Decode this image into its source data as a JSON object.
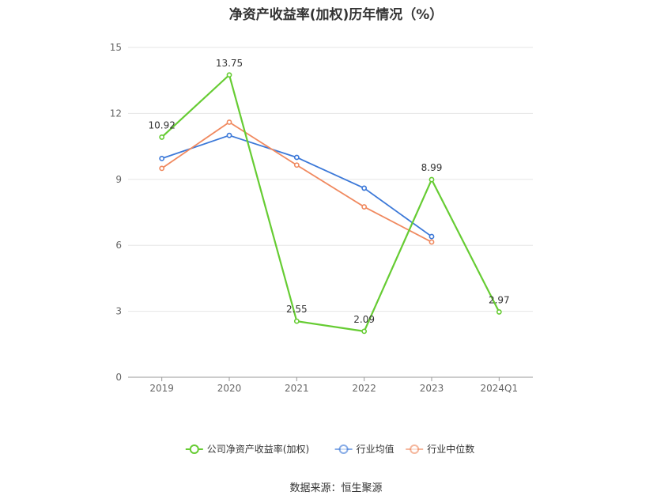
{
  "chart_data": {
    "type": "line",
    "title": "净资产收益率(加权)历年情况（%）",
    "xlabel": "",
    "ylabel": "",
    "categories": [
      "2019",
      "2020",
      "2021",
      "2022",
      "2023",
      "2024Q1"
    ],
    "ylim": [
      0,
      15
    ],
    "yticks": [
      0,
      3,
      6,
      9,
      12,
      15
    ],
    "grid": true,
    "legend_position": "bottom",
    "series": [
      {
        "name": "公司净资产收益率(加权)",
        "color": "#66cc33",
        "values": [
          10.92,
          13.75,
          2.55,
          2.09,
          8.99,
          2.97
        ],
        "labels": [
          "10.92",
          "13.75",
          "2.55",
          "2.09",
          "8.99",
          "2.97"
        ]
      },
      {
        "name": "行业均值",
        "color": "#3b78d8",
        "values": [
          9.95,
          11.0,
          10.0,
          8.6,
          6.4,
          null
        ]
      },
      {
        "name": "行业中位数",
        "color": "#f0895f",
        "values": [
          9.5,
          11.6,
          9.65,
          7.75,
          6.15,
          null
        ]
      }
    ]
  },
  "source": "数据来源：恒生聚源"
}
